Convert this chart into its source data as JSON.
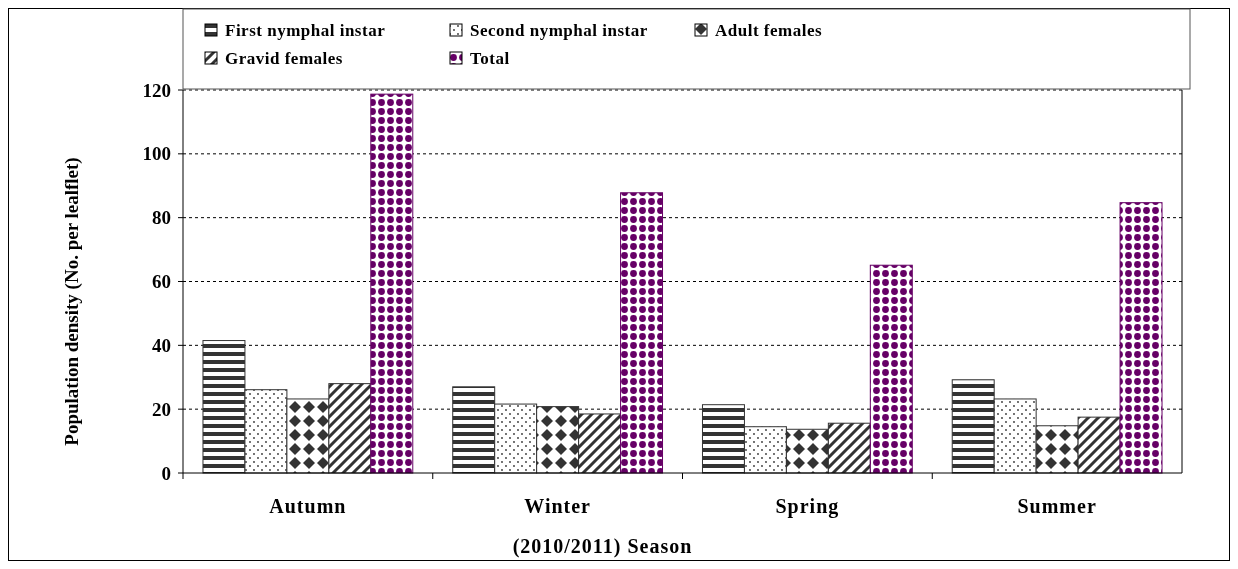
{
  "chart_data": {
    "type": "bar",
    "xlabel": "(2010/2011) Season",
    "ylabel": "Population density (No. per lealflet)",
    "categories": [
      "Autumn",
      "Winter",
      "Spring",
      "Summer"
    ],
    "series": [
      {
        "name": "First nymphal instar",
        "color": "#333333",
        "values": [
          41.5,
          27.0,
          21.4,
          29.2
        ]
      },
      {
        "name": "Second nymphal instar",
        "color": "#333333",
        "values": [
          26.1,
          21.6,
          14.5,
          23.2
        ]
      },
      {
        "name": "Adult females",
        "color": "#333333",
        "values": [
          23.2,
          20.8,
          13.7,
          14.8
        ]
      },
      {
        "name": "Gravid females",
        "color": "#333333",
        "values": [
          28.0,
          18.5,
          15.6,
          17.5
        ]
      },
      {
        "name": "Total",
        "color": "#660066",
        "values": [
          118.7,
          87.8,
          65.1,
          84.7
        ]
      }
    ],
    "ylim": [
      0,
      120
    ],
    "yticks": [
      0,
      20,
      40,
      60,
      80,
      100,
      120
    ],
    "grid": "y",
    "line_style": "dotted",
    "legend": "top"
  }
}
